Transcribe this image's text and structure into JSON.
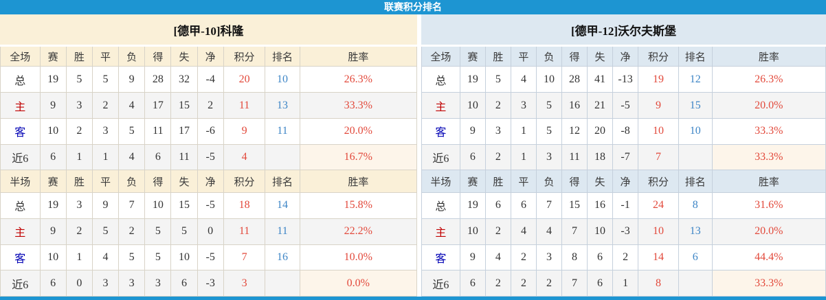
{
  "title": "联赛积分排名",
  "colors": {
    "accent": "#1d95d2",
    "panel_left_bg": "#faf0d8",
    "panel_right_bg": "#dde8f1",
    "points_red": "#e2483a",
    "rank_blue": "#3d85c6",
    "home_label_red": "#c00000",
    "away_label_blue": "#0000b4",
    "row_alt_gray": "#f4f4f4",
    "highlight_cream": "#fdf5ea"
  },
  "columns_full": [
    "全场",
    "赛",
    "胜",
    "平",
    "负",
    "得",
    "失",
    "净",
    "积分",
    "排名",
    "胜率"
  ],
  "columns_half": [
    "半场",
    "赛",
    "胜",
    "平",
    "负",
    "得",
    "失",
    "净",
    "积分",
    "排名",
    "胜率"
  ],
  "panels": [
    {
      "team": "[德甲-10]科隆",
      "full": [
        {
          "label": "总",
          "lc": "k",
          "v": [
            "19",
            "5",
            "5",
            "9",
            "28",
            "32",
            "-4"
          ],
          "pts": "20",
          "rank": "10",
          "rate": "26.3%"
        },
        {
          "label": "主",
          "lc": "r",
          "v": [
            "9",
            "3",
            "2",
            "4",
            "17",
            "15",
            "2"
          ],
          "pts": "11",
          "rank": "13",
          "rate": "33.3%"
        },
        {
          "label": "客",
          "lc": "b",
          "v": [
            "10",
            "2",
            "3",
            "5",
            "11",
            "17",
            "-6"
          ],
          "pts": "9",
          "rank": "11",
          "rate": "20.0%"
        },
        {
          "label": "近6",
          "lc": "k",
          "v": [
            "6",
            "1",
            "1",
            "4",
            "6",
            "11",
            "-5"
          ],
          "pts": "4",
          "rank": "",
          "rate": "16.7%",
          "hl": true
        }
      ],
      "half": [
        {
          "label": "总",
          "lc": "k",
          "v": [
            "19",
            "3",
            "9",
            "7",
            "10",
            "15",
            "-5"
          ],
          "pts": "18",
          "rank": "14",
          "rate": "15.8%"
        },
        {
          "label": "主",
          "lc": "r",
          "v": [
            "9",
            "2",
            "5",
            "2",
            "5",
            "5",
            "0"
          ],
          "pts": "11",
          "rank": "11",
          "rate": "22.2%"
        },
        {
          "label": "客",
          "lc": "b",
          "v": [
            "10",
            "1",
            "4",
            "5",
            "5",
            "10",
            "-5"
          ],
          "pts": "7",
          "rank": "16",
          "rate": "10.0%"
        },
        {
          "label": "近6",
          "lc": "k",
          "v": [
            "6",
            "0",
            "3",
            "3",
            "3",
            "6",
            "-3"
          ],
          "pts": "3",
          "rank": "",
          "rate": "0.0%",
          "hl": true
        }
      ]
    },
    {
      "team": "[德甲-12]沃尔夫斯堡",
      "full": [
        {
          "label": "总",
          "lc": "k",
          "v": [
            "19",
            "5",
            "4",
            "10",
            "28",
            "41",
            "-13"
          ],
          "pts": "19",
          "rank": "12",
          "rate": "26.3%"
        },
        {
          "label": "主",
          "lc": "r",
          "v": [
            "10",
            "2",
            "3",
            "5",
            "16",
            "21",
            "-5"
          ],
          "pts": "9",
          "rank": "15",
          "rate": "20.0%"
        },
        {
          "label": "客",
          "lc": "b",
          "v": [
            "9",
            "3",
            "1",
            "5",
            "12",
            "20",
            "-8"
          ],
          "pts": "10",
          "rank": "10",
          "rate": "33.3%"
        },
        {
          "label": "近6",
          "lc": "k",
          "v": [
            "6",
            "2",
            "1",
            "3",
            "11",
            "18",
            "-7"
          ],
          "pts": "7",
          "rank": "",
          "rate": "33.3%",
          "hl": true
        }
      ],
      "half": [
        {
          "label": "总",
          "lc": "k",
          "v": [
            "19",
            "6",
            "6",
            "7",
            "15",
            "16",
            "-1"
          ],
          "pts": "24",
          "rank": "8",
          "rate": "31.6%"
        },
        {
          "label": "主",
          "lc": "r",
          "v": [
            "10",
            "2",
            "4",
            "4",
            "7",
            "10",
            "-3"
          ],
          "pts": "10",
          "rank": "13",
          "rate": "20.0%"
        },
        {
          "label": "客",
          "lc": "b",
          "v": [
            "9",
            "4",
            "2",
            "3",
            "8",
            "6",
            "2"
          ],
          "pts": "14",
          "rank": "6",
          "rate": "44.4%"
        },
        {
          "label": "近6",
          "lc": "k",
          "v": [
            "6",
            "2",
            "2",
            "2",
            "7",
            "6",
            "1"
          ],
          "pts": "8",
          "rank": "",
          "rate": "33.3%",
          "hl": true
        }
      ]
    }
  ]
}
